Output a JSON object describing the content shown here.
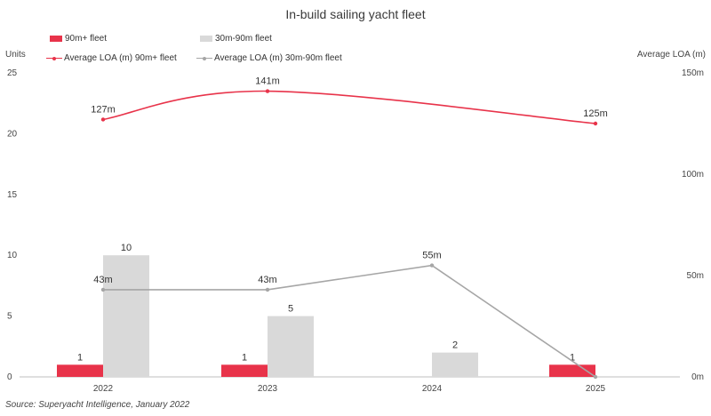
{
  "chart_data": {
    "type": "bar+line",
    "title": "In-build sailing yacht fleet",
    "categories": [
      "2022",
      "2023",
      "2024",
      "2025"
    ],
    "left_axis": {
      "label": "Units",
      "ylim": [
        0,
        25
      ],
      "ticks": [
        "0",
        "5",
        "10",
        "15",
        "20",
        "25"
      ]
    },
    "right_axis": {
      "label": "Average LOA (m)",
      "ylim": [
        0,
        150
      ],
      "ticks": [
        "0m",
        "50m",
        "100m",
        "150m"
      ]
    },
    "bar_series": [
      {
        "name": "90m+ fleet",
        "color": "#e8334a",
        "values": [
          1,
          1,
          null,
          1
        ],
        "labels": [
          "1",
          "1",
          "",
          "1"
        ]
      },
      {
        "name": "30m-90m fleet",
        "color": "#d9d9d9",
        "values": [
          10,
          5,
          2,
          null
        ],
        "labels": [
          "10",
          "5",
          "2",
          ""
        ]
      }
    ],
    "line_series": [
      {
        "name": "Average LOA (m) 90m+ fleet",
        "color": "#e8334a",
        "smooth": true,
        "values": [
          127,
          141,
          null,
          125
        ],
        "labels": [
          "127m",
          "141m",
          "",
          "125m"
        ]
      },
      {
        "name": "Average LOA (m) 30m-90m fleet",
        "color": "#a6a6a6",
        "smooth": false,
        "values": [
          43,
          43,
          55,
          0
        ],
        "labels": [
          "43m",
          "43m",
          "55m",
          ""
        ]
      }
    ],
    "grid": false,
    "legend_position": "top-left",
    "source": "Source: Superyacht Intelligence, January 2022"
  }
}
